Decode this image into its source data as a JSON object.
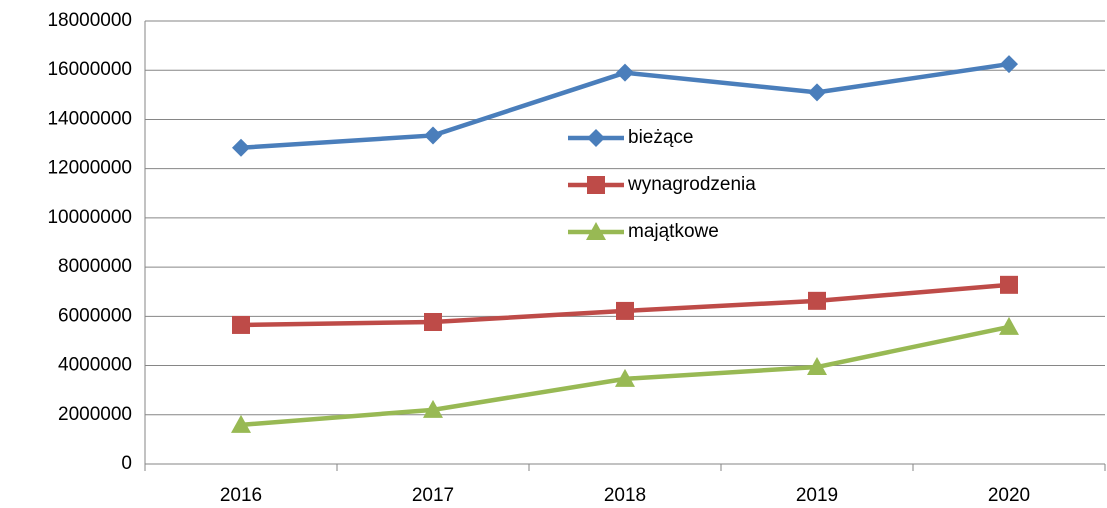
{
  "chart_data": {
    "type": "line",
    "categories": [
      "2016",
      "2017",
      "2018",
      "2019",
      "2020"
    ],
    "series": [
      {
        "name": "bieżące",
        "color": "#4a7ebb",
        "marker": "diamond",
        "values": [
          12850000,
          13350000,
          15900000,
          15100000,
          16250000
        ]
      },
      {
        "name": "wynagrodzenia",
        "color": "#be4b48",
        "marker": "square",
        "values": [
          5650000,
          5770000,
          6220000,
          6630000,
          7280000
        ]
      },
      {
        "name": "majątkowe",
        "color": "#98b954",
        "marker": "triangle",
        "values": [
          1590000,
          2200000,
          3460000,
          3940000,
          5570000
        ]
      }
    ],
    "ylim": [
      0,
      18000000
    ],
    "yticks": [
      0,
      2000000,
      4000000,
      6000000,
      8000000,
      10000000,
      12000000,
      14000000,
      16000000,
      18000000
    ],
    "grid": true,
    "legend": "center"
  }
}
